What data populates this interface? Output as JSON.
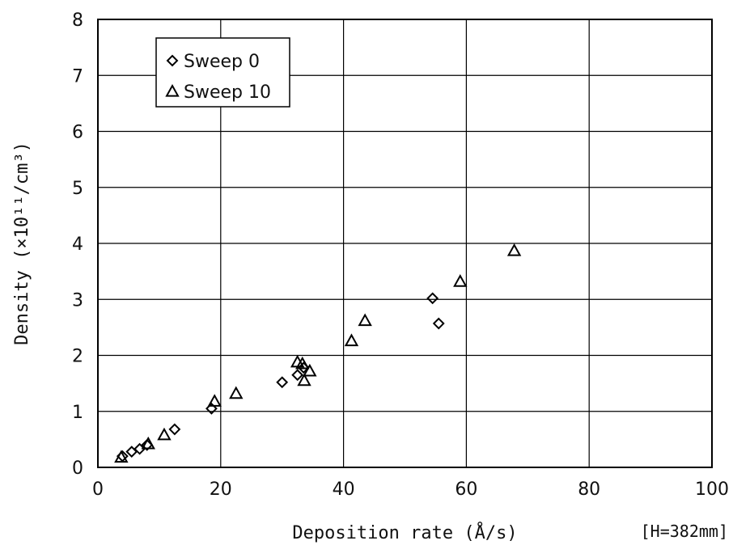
{
  "chart_data": {
    "type": "scatter",
    "xlabel": "Deposition rate (Å/s)",
    "ylabel": "Density (×10¹¹/cm³)",
    "note": "[H=382mm]",
    "xlim": [
      0,
      100
    ],
    "ylim": [
      0,
      8
    ],
    "xticks": [
      0,
      20,
      40,
      60,
      80,
      100
    ],
    "yticks": [
      0,
      1,
      2,
      3,
      4,
      5,
      6,
      7,
      8
    ],
    "grid": true,
    "legend_position": "top-left",
    "series": [
      {
        "name": "Sweep 0",
        "marker": "diamond",
        "points": [
          [
            4,
            0.2
          ],
          [
            5.5,
            0.28
          ],
          [
            6.8,
            0.33
          ],
          [
            8,
            0.4
          ],
          [
            12.5,
            0.68
          ],
          [
            18.5,
            1.05
          ],
          [
            30,
            1.52
          ],
          [
            32.5,
            1.65
          ],
          [
            33.5,
            1.78
          ],
          [
            54.5,
            3.02
          ],
          [
            55.5,
            2.57
          ]
        ]
      },
      {
        "name": "Sweep 10",
        "marker": "triangle",
        "points": [
          [
            3.8,
            0.18
          ],
          [
            8.2,
            0.42
          ],
          [
            10.8,
            0.58
          ],
          [
            19,
            1.18
          ],
          [
            22.5,
            1.32
          ],
          [
            32.5,
            1.88
          ],
          [
            33.3,
            1.85
          ],
          [
            33.6,
            1.55
          ],
          [
            34.5,
            1.72
          ],
          [
            41.3,
            2.26
          ],
          [
            43.5,
            2.62
          ],
          [
            59,
            3.32
          ],
          [
            67.8,
            3.87
          ]
        ]
      }
    ]
  }
}
